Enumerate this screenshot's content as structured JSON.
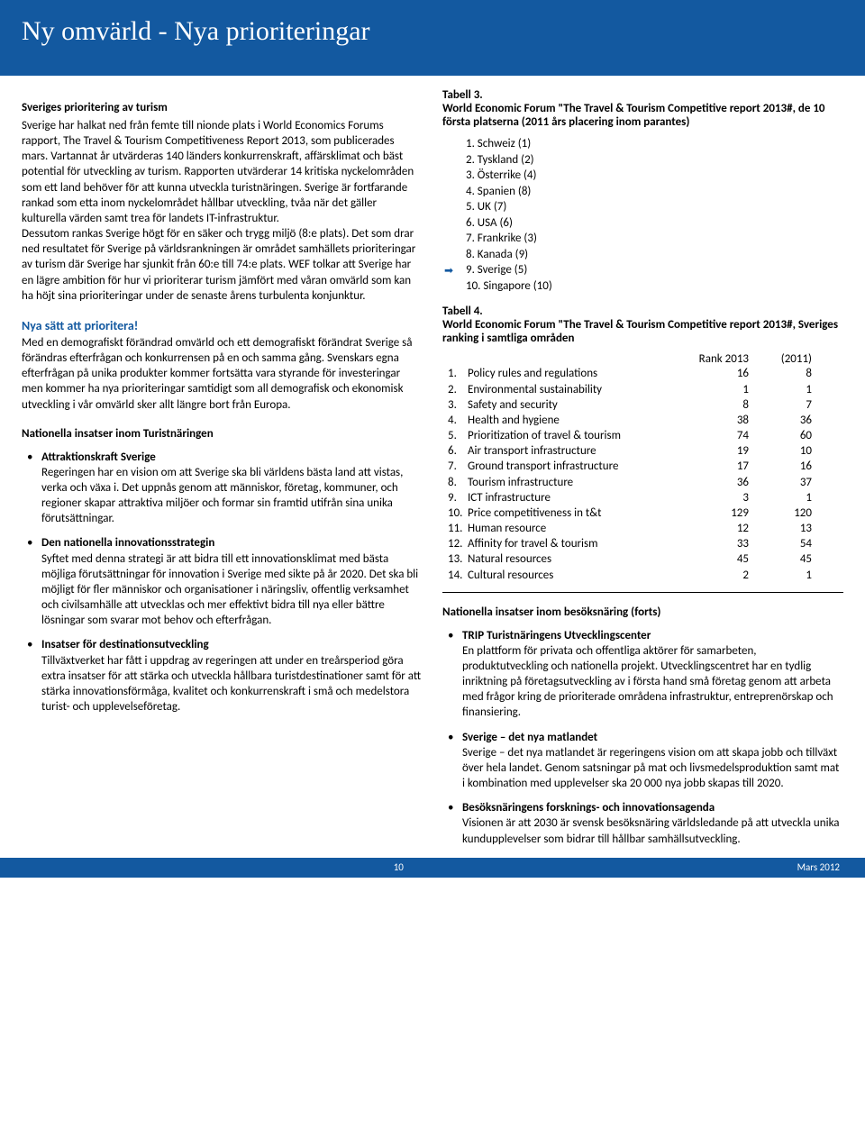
{
  "header": {
    "title": "Ny omvärld - Nya prioriteringar"
  },
  "left": {
    "heading1": "Sveriges prioritering av turism",
    "para1": "Sverige har halkat ned från femte till nionde plats i World Economics Forums rapport, The Travel & Tourism Competitiveness Report 2013, som publicerades mars. Vartannat år utvärderas 140 länders konkurrenskraft, affärsklimat och bäst potential för utveckling av turism. Rapporten utvärderar 14 kritiska nyckelområden som ett land behöver för att kunna utveckla turistnäringen. Sverige är fortfarande rankad som etta inom nyckelområdet hållbar utveckling, tvåa när det gäller kulturella värden samt trea för landets IT-infrastruktur.",
    "para1b": "Dessutom rankas Sverige högt för en säker och trygg miljö (8:e plats). Det som drar ned resultatet för Sverige på världsrankningen är området samhällets prioriteringar av turism där Sverige har sjunkit från 60:e till 74:e plats. WEF tolkar att Sverige har en lägre ambition för hur vi prioriterar turism jämfört med våran omvärld som kan ha höjt sina prioriteringar under de senaste årens turbulenta konjunktur.",
    "heading2": "Nya sätt att prioritera!",
    "para2": "Med en demografiskt förändrad omvärld och ett demografiskt förändrat Sverige så förändras efterfrågan och konkurrensen på en och samma gång. Svenskars egna efterfrågan på unika produkter kommer fortsätta vara styrande för investeringar men kommer ha nya prioriteringar samtidigt som all demografisk och ekonomisk utveckling i vår omvärld sker allt längre bort från Europa.",
    "heading3": "Nationella insatser inom Turistnäringen",
    "bullets": [
      {
        "head": "Attraktionskraft Sverige",
        "body": "Regeringen har en vision om att Sverige ska bli världens bästa land att vistas, verka och växa i. Det uppnås genom att människor, företag, kommuner, och regioner skapar attraktiva miljöer och formar sin framtid utifrån sina unika förutsättningar."
      },
      {
        "head": "Den nationella innovationsstrategin",
        "body": "Syftet med denna strategi är att bidra till ett innovationsklimat med bästa möjliga förutsättningar för innovation i Sverige med sikte på år 2020. Det ska bli möjligt för fler människor och organisationer i näringsliv, offentlig verksamhet och civilsamhälle att utvecklas och mer effektivt bidra till nya eller bättre lösningar som svarar mot behov och efterfrågan."
      },
      {
        "head": "Insatser för destinationsutveckling",
        "body": "Tillväxtverket har fått i uppdrag av regeringen att under en treårsperiod göra extra insatser för att stärka och utveckla hållbara turistdestinationer samt för att stärka innovationsförmåga, kvalitet och konkurrenskraft i små och medelstora turist- och upplevelseföretag."
      }
    ]
  },
  "right": {
    "t3cap": "Tabell 3.",
    "t3desc": "World Economic Forum \"The Travel & Tourism Competitive report 2013#, de 10 första platserna (2011 års placering inom parantes)",
    "ranks": [
      "1. Schweiz (1)",
      "2. Tyskland (2)",
      "3. Österrike (4)",
      "4. Spanien (8)",
      "5. UK (7)",
      "6. USA (6)",
      "7. Frankrike (3)",
      "8. Kanada (9)",
      "9. Sverige (5)",
      "10. Singapore (10)"
    ],
    "t4cap": "Tabell 4.",
    "t4desc": "World Economic Forum \"The Travel & Tourism Competitive report 2013#,  Sveriges ranking i samtliga områden",
    "t4head": {
      "c2": "Rank 2013",
      "c3": "(2011)"
    },
    "t4rows": [
      {
        "n": "1.",
        "c1": "Policy rules and regulations",
        "c2": "16",
        "c3": "8"
      },
      {
        "n": "2.",
        "c1": "Environmental sustainability",
        "c2": "1",
        "c3": "1"
      },
      {
        "n": "3.",
        "c1": "Safety and security",
        "c2": "8",
        "c3": "7"
      },
      {
        "n": "4.",
        "c1": "Health and hygiene",
        "c2": "38",
        "c3": "36"
      },
      {
        "n": "5.",
        "c1": "Prioritization of travel & tourism",
        "c2": "74",
        "c3": "60"
      },
      {
        "n": "6.",
        "c1": "Air transport infrastructure",
        "c2": "19",
        "c3": "10"
      },
      {
        "n": "7.",
        "c1": "Ground transport infrastructure",
        "c2": "17",
        "c3": "16"
      },
      {
        "n": "8.",
        "c1": "Tourism infrastructure",
        "c2": "36",
        "c3": "37"
      },
      {
        "n": "9.",
        "c1": "ICT infrastructure",
        "c2": "3",
        "c3": "1"
      },
      {
        "n": "10.",
        "c1": "Price competitiveness in t&t",
        "c2": "129",
        "c3": "120"
      },
      {
        "n": "11.",
        "c1": "Human resource",
        "c2": "12",
        "c3": "13"
      },
      {
        "n": "12.",
        "c1": "Affinity for travel & tourism",
        "c2": "33",
        "c3": "54"
      },
      {
        "n": "13.",
        "c1": "Natural resources",
        "c2": "45",
        "c3": "45"
      },
      {
        "n": "14.",
        "c1": "Cultural resources",
        "c2": "2",
        "c3": "1"
      }
    ],
    "heading4": "Nationella insatser inom besöksnäring (forts)",
    "bullets2": [
      {
        "head": "TRIP Turistnäringens Utvecklingscenter",
        "body": "En plattform för privata och offentliga aktörer för samarbeten, produktutveckling och nationella projekt. Utvecklingscentret har en tydlig inriktning på företagsutveckling av i första hand små företag genom att arbeta med frågor kring de prioriterade områdena infrastruktur, entreprenörskap och finansiering."
      },
      {
        "head": "Sverige – det nya matlandet",
        "body": "Sverige – det nya matlandet är regeringens vision om att skapa jobb och tillväxt över hela landet. Genom satsningar på mat och livsmedelsproduktion samt mat i kombination med upplevelser ska 20 000 nya jobb skapas till 2020."
      },
      {
        "head": "Besöksnäringens forsknings- och innovationsagenda",
        "body": "Visionen är att 2030 är svensk besöksnäring världsledande på att utveckla unika kundupplevelser som bidrar till hållbar samhällsutveckling."
      }
    ]
  },
  "footer": {
    "page": "10",
    "date": "Mars 2012"
  }
}
